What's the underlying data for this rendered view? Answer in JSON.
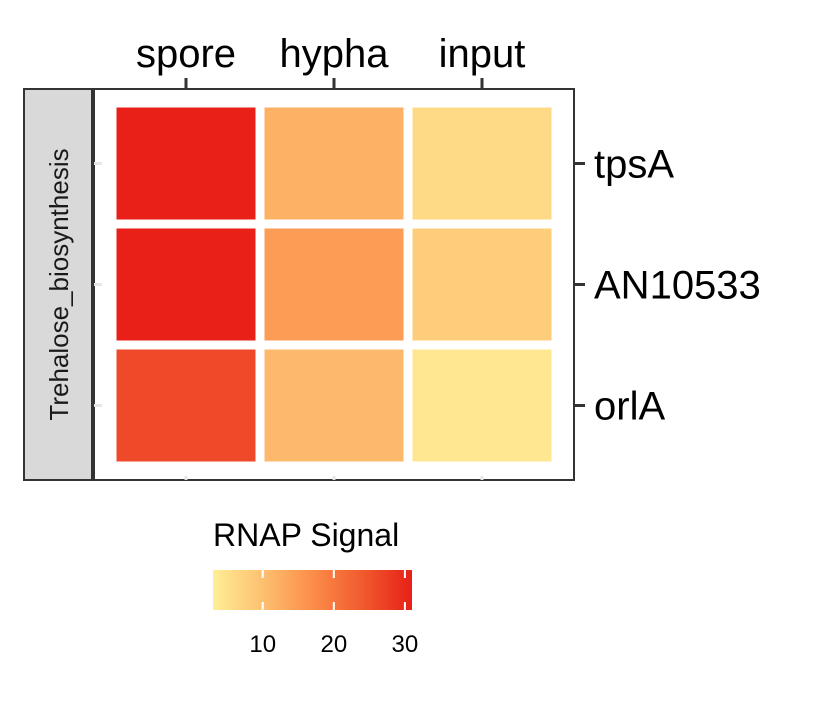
{
  "chart_data": {
    "type": "heatmap",
    "title": "",
    "facet_label": "Trehalose_biosynthesis",
    "x_categories": [
      "spore",
      "hypha",
      "input"
    ],
    "y_categories": [
      "tpsA",
      "AN10533",
      "orlA"
    ],
    "values": [
      [
        31,
        12,
        6
      ],
      [
        31,
        15,
        8
      ],
      [
        26,
        11,
        4
      ]
    ],
    "x_axis_position": "top",
    "y_axis_position": "right",
    "grid": false,
    "legend": {
      "title": "RNAP Signal",
      "position": "bottom",
      "range": [
        3,
        31
      ],
      "ticks": [
        10,
        20,
        30
      ],
      "colors": [
        "#FFEE96",
        "#FDC070",
        "#FC8D4A",
        "#F15A2E",
        "#E82018"
      ]
    }
  }
}
